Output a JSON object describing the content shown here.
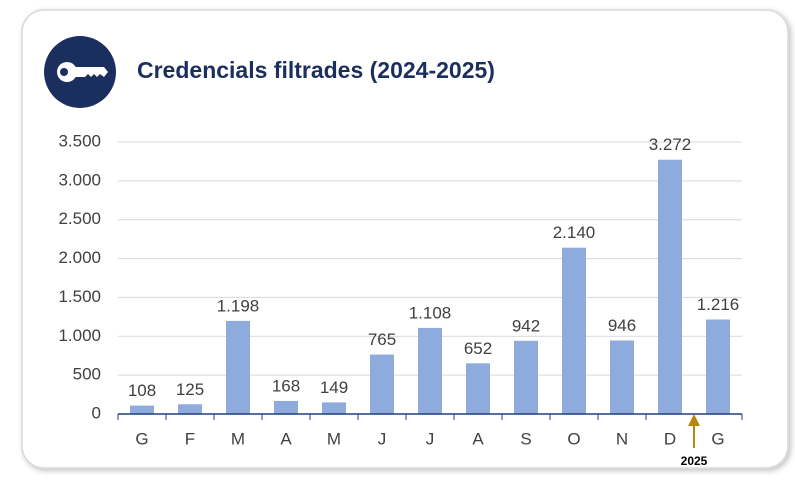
{
  "chart_data": {
    "type": "bar",
    "title": "Credencials filtrades (2024-2025)",
    "categories": [
      "G",
      "F",
      "M",
      "A",
      "M",
      "J",
      "J",
      "A",
      "S",
      "O",
      "N",
      "D",
      "G"
    ],
    "values": [
      108,
      125,
      1198,
      168,
      149,
      765,
      1108,
      652,
      942,
      2140,
      946,
      3272,
      1216
    ],
    "value_labels": [
      "108",
      "125",
      "1.198",
      "168",
      "149",
      "765",
      "1.108",
      "652",
      "942",
      "2.140",
      "946",
      "3.272",
      "1.216"
    ],
    "color": "#8faadc",
    "ylim": [
      0,
      3500
    ],
    "yticks": [
      0,
      500,
      {
        "value": 1000,
        "label": "1.000"
      },
      {
        "value": 1500,
        "label": "1.500"
      },
      {
        "value": 2000,
        "label": "2.000"
      },
      {
        "value": 2500,
        "label": "2.500"
      },
      {
        "value": 3000,
        "label": "3.000"
      },
      {
        "value": 3500,
        "label": "3.500"
      }
    ],
    "grid": true,
    "annotation": "2025"
  }
}
